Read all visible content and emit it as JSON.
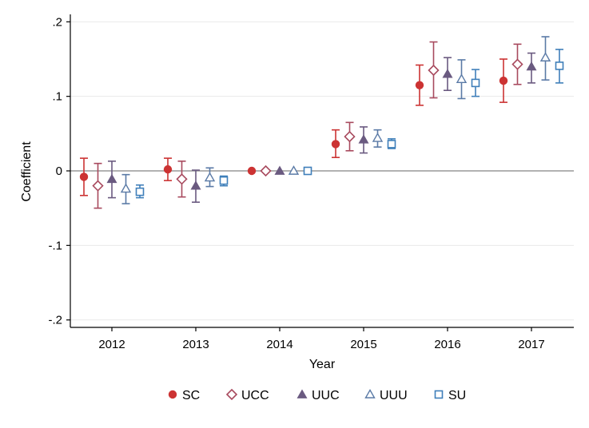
{
  "chart_data": {
    "type": "scatter",
    "title": "",
    "xlabel": "Year",
    "ylabel": "Coefficient",
    "categories": [
      "2012",
      "2013",
      "2014",
      "2015",
      "2016",
      "2017"
    ],
    "ylim": [
      -0.21,
      0.21
    ],
    "yticks": [
      {
        "value": -0.2,
        "label": "-.2"
      },
      {
        "value": -0.1,
        "label": "-.1"
      },
      {
        "value": 0,
        "label": "0"
      },
      {
        "value": 0.1,
        "label": ".1"
      },
      {
        "value": 0.2,
        "label": ".2"
      }
    ],
    "grid": true,
    "reference_line": 0,
    "legend_position": "bottom",
    "series": [
      {
        "name": "SC",
        "marker": "circle-filled",
        "color": "#cc3333",
        "values": [
          -0.008,
          0.002,
          0.0,
          0.036,
          0.115,
          0.121
        ],
        "lower": [
          -0.033,
          -0.013,
          0.0,
          0.018,
          0.088,
          0.092
        ],
        "upper": [
          0.017,
          0.017,
          0.0,
          0.055,
          0.142,
          0.15
        ]
      },
      {
        "name": "UCC",
        "marker": "diamond-hollow",
        "color": "#a84a5e",
        "values": [
          -0.02,
          -0.011,
          0.0,
          0.046,
          0.135,
          0.143
        ],
        "lower": [
          -0.05,
          -0.035,
          0.0,
          0.027,
          0.098,
          0.116
        ],
        "upper": [
          0.01,
          0.013,
          0.0,
          0.065,
          0.173,
          0.17
        ]
      },
      {
        "name": "UUC",
        "marker": "triangle-filled",
        "color": "#6a5a80",
        "values": [
          -0.011,
          -0.02,
          0.0,
          0.042,
          0.13,
          0.14
        ],
        "lower": [
          -0.036,
          -0.042,
          0.0,
          0.024,
          0.108,
          0.118
        ],
        "upper": [
          0.013,
          0.001,
          0.0,
          0.059,
          0.152,
          0.158
        ]
      },
      {
        "name": "UUU",
        "marker": "triangle-hollow",
        "color": "#5a7aa6",
        "values": [
          -0.024,
          -0.009,
          0.0,
          0.044,
          0.123,
          0.152
        ],
        "lower": [
          -0.044,
          -0.021,
          0.0,
          0.032,
          0.097,
          0.122
        ],
        "upper": [
          -0.005,
          0.004,
          0.0,
          0.055,
          0.149,
          0.18
        ]
      },
      {
        "name": "SU",
        "marker": "square-hollow",
        "color": "#3f7fba",
        "values": [
          -0.028,
          -0.013,
          0.0,
          0.036,
          0.118,
          0.141
        ],
        "lower": [
          -0.036,
          -0.02,
          0.0,
          0.03,
          0.1,
          0.118
        ],
        "upper": [
          -0.019,
          -0.007,
          0.0,
          0.043,
          0.136,
          0.163
        ]
      }
    ]
  }
}
